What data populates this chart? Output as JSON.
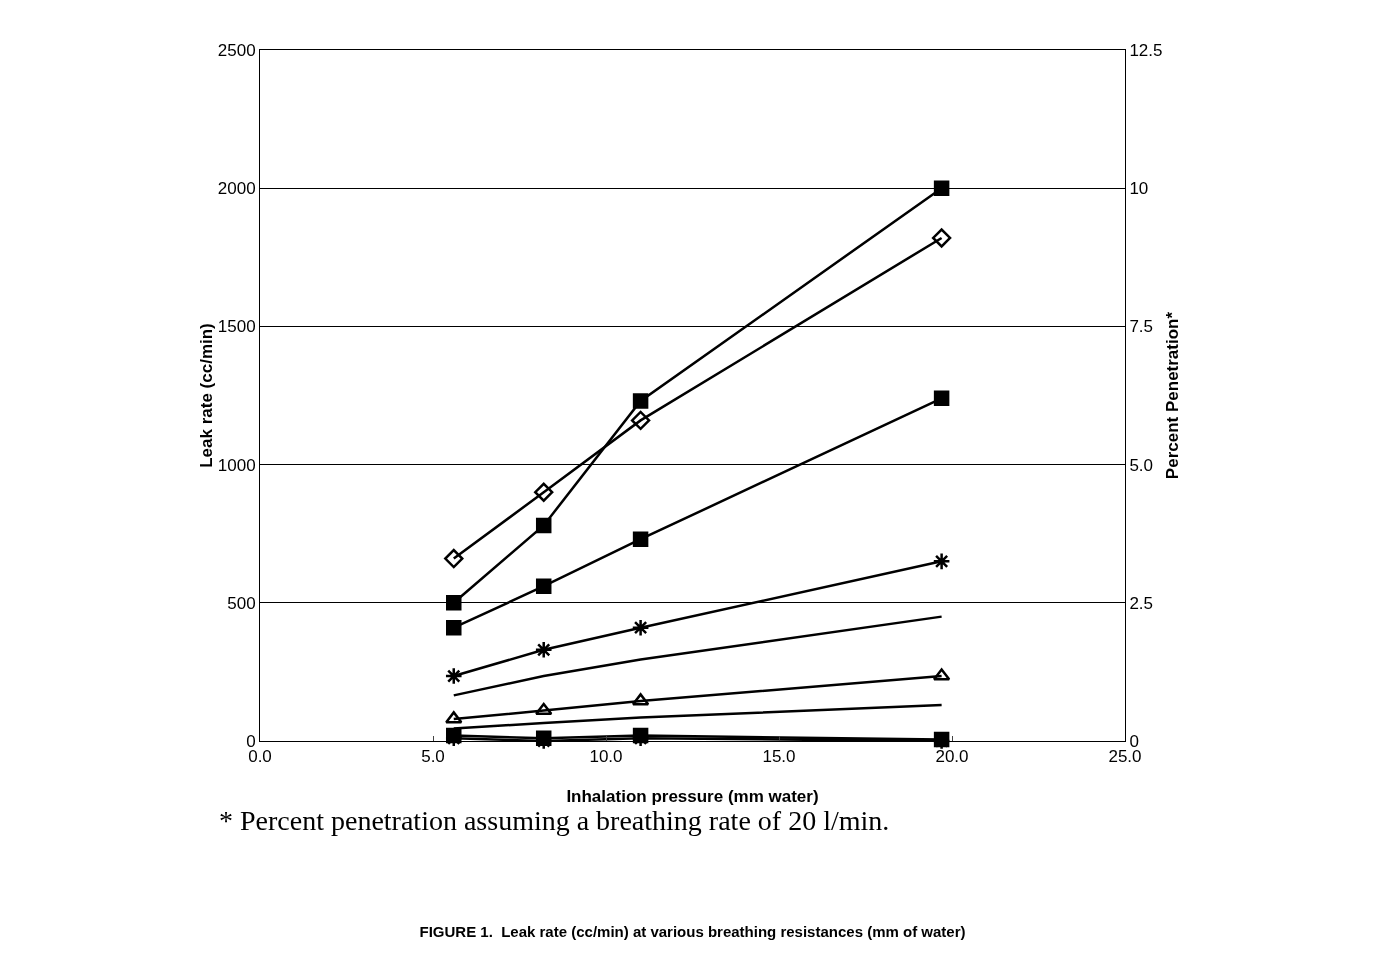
{
  "chart_data": {
    "type": "line",
    "title": "FIGURE 1.  Leak rate (cc/min) at various breathing resistances (mm of water)",
    "xlabel": "Inhalation pressure (mm water)",
    "ylabel": "Leak rate (cc/min)",
    "y2label": "Percent Penetration*",
    "x": [
      5.6,
      8.2,
      11.0,
      19.7
    ],
    "series": [
      {
        "color": "#000000",
        "marker": "square",
        "values": [
          500,
          780,
          1230,
          2000
        ]
      },
      {
        "color": "#000000",
        "marker": "diamond",
        "values": [
          660,
          900,
          1160,
          1820
        ]
      },
      {
        "color": "#000000",
        "marker": "square",
        "values": [
          410,
          560,
          730,
          1240
        ]
      },
      {
        "color": "#000000",
        "marker": "cross",
        "values": [
          235,
          330,
          410,
          650
        ]
      },
      {
        "color": "#000000",
        "marker": "none",
        "values": [
          165,
          235,
          295,
          450
        ]
      },
      {
        "color": "#000000",
        "marker": "triangle",
        "values": [
          80,
          110,
          145,
          235
        ]
      },
      {
        "color": "#000000",
        "marker": "none",
        "values": [
          45,
          65,
          85,
          130
        ]
      },
      {
        "color": "#000000",
        "marker": "square",
        "values": [
          20,
          10,
          20,
          5
        ]
      },
      {
        "color": "#000000",
        "marker": "cross",
        "values": [
          10,
          0,
          10,
          0
        ]
      },
      {
        "color": "#000000",
        "axis": "y2",
        "marker": "none",
        "values": [
          null,
          null,
          null,
          null
        ]
      }
    ],
    "xlim": [
      0,
      25
    ],
    "xticks": [
      {
        "value": 0,
        "label": "0.0"
      },
      {
        "value": 5,
        "label": "5.0"
      },
      {
        "value": 10,
        "label": "10.0"
      },
      {
        "value": 15,
        "label": "15.0"
      },
      {
        "value": 20,
        "label": "20.0"
      },
      {
        "value": 25,
        "label": "25.0"
      }
    ],
    "ylim": [
      0,
      2500
    ],
    "yticks": [
      0,
      500,
      1000,
      1500,
      2000,
      2500
    ],
    "y2lim": [
      0,
      12.5
    ],
    "y2ticks": [
      0,
      2.5,
      {
        "value": 5,
        "label": "5.0"
      },
      {
        "value": 7.5,
        "label": "7.5"
      },
      10,
      12.5
    ],
    "grid": "y",
    "line_style": "solid",
    "annotations": [
      "* Percent penetration assuming a breathing rate of 20 l/min."
    ]
  }
}
